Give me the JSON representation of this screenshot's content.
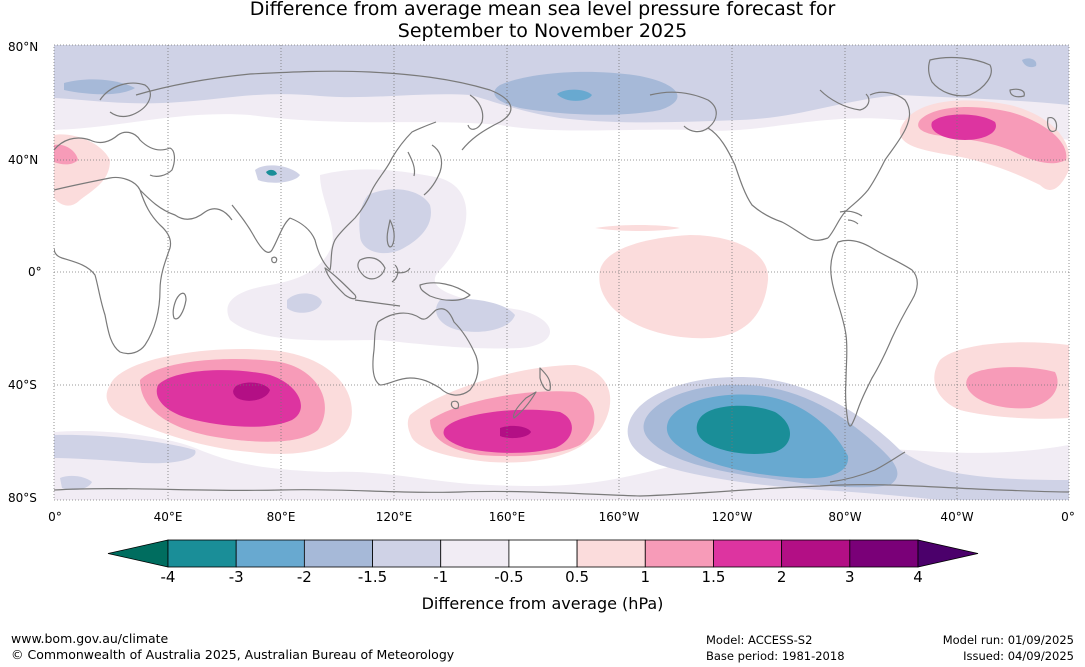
{
  "title": {
    "line1": "Difference from average mean sea level pressure forecast for",
    "line2": "September to November 2025"
  },
  "map": {
    "lat_labels": [
      "80°N",
      "40°N",
      "0°",
      "40°S",
      "80°S"
    ],
    "lon_labels": [
      "0°",
      "40°E",
      "80°E",
      "120°E",
      "160°E",
      "160°W",
      "120°W",
      "80°W",
      "40°W",
      "0°"
    ],
    "land_color": "#ffffff",
    "coast_color": "#7a7a7a",
    "grid_style": "dotted"
  },
  "colorbar": {
    "tick_labels": [
      "-4",
      "-3",
      "-2",
      "-1.5",
      "-1",
      "-0.5",
      "0.5",
      "1",
      "1.5",
      "2",
      "3",
      "4"
    ],
    "colors": [
      "#006d5f",
      "#1a8e98",
      "#68a9d0",
      "#a6b9d8",
      "#cfd2e6",
      "#f1ecf4",
      "#ffffff",
      "#fbdcdc",
      "#f79bb8",
      "#dd34a0",
      "#b30f85",
      "#7a0078",
      "#4b006b"
    ],
    "title": "Difference from average (hPa)"
  },
  "footer": {
    "website": "www.bom.gov.au/climate",
    "copyright": "© Commonwealth of Australia 2025, Australian Bureau of Meteorology",
    "model": "Model: ACCESS-S2",
    "base_period": "Base period: 1981-2018",
    "model_run": "Model run: 01/09/2025",
    "issued": "Issued: 04/09/2025"
  }
}
